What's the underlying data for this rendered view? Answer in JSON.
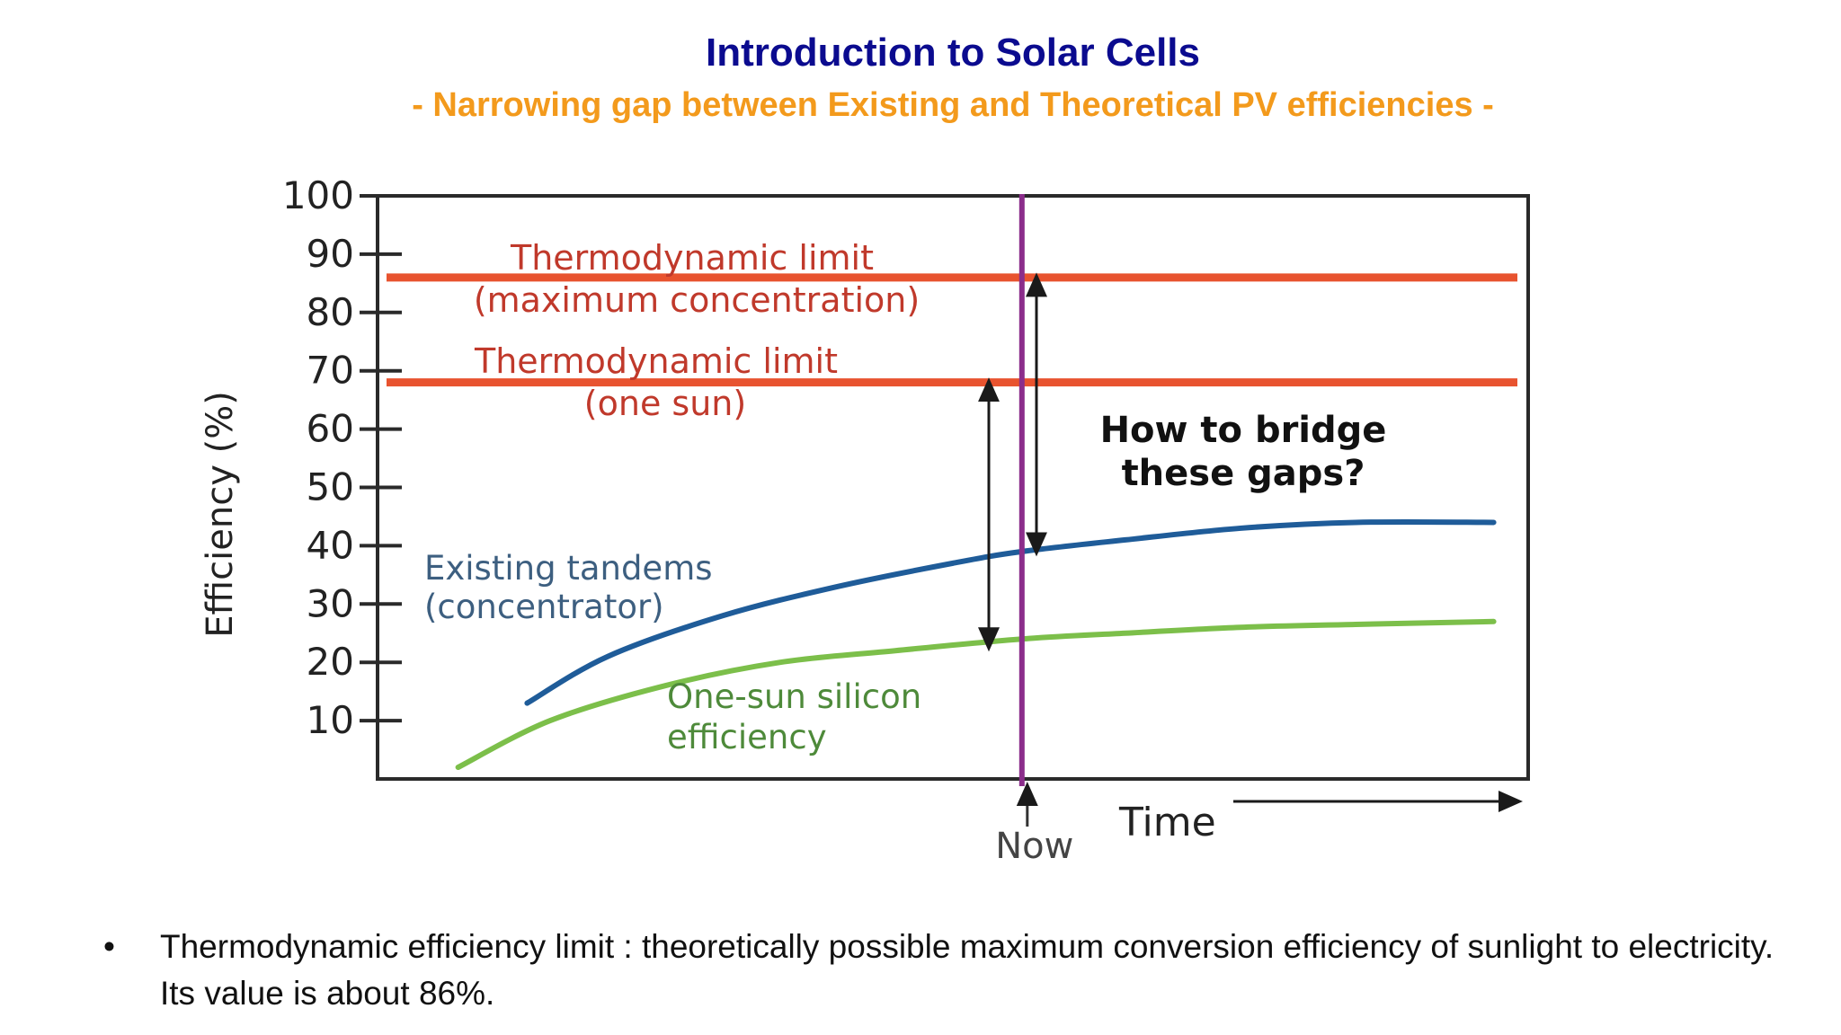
{
  "slide": {
    "title": "Introduction to Solar Cells",
    "subtitle": "- Narrowing gap between Existing and Theoretical PV efficiencies -",
    "bullet_symbol": "•",
    "bullet_text": "Thermodynamic efficiency limit : theoretically possible maximum conversion efficiency of sunlight to electricity. Its value is about 86%."
  },
  "colors": {
    "title": "#0b0b8f",
    "subtitle": "#f39a1c",
    "limit_line": "#e8532f",
    "tandem_line": "#1f5c99",
    "silicon_line": "#7cbf4a",
    "now_line": "#8b2d8b",
    "axis": "#2a2a2a"
  },
  "chart_data": {
    "type": "line",
    "ylabel": "Efficiency (%)",
    "xlabel": "Time",
    "ylim": [
      0,
      100
    ],
    "xlim": [
      0,
      100
    ],
    "yticks": [
      10,
      20,
      30,
      40,
      50,
      60,
      70,
      80,
      90,
      100
    ],
    "grid": false,
    "now_x": 56,
    "now_label": "Now",
    "hlines": [
      {
        "name": "Thermodynamic limit (maximum concentration)",
        "y": 86,
        "label_lines": [
          "Thermodynamic limit",
          "(maximum concentration)"
        ]
      },
      {
        "name": "Thermodynamic limit (one sun)",
        "y": 68,
        "label_lines": [
          "Thermodynamic limit",
          "(one sun)"
        ]
      }
    ],
    "series": [
      {
        "name": "Existing tandems (concentrator)",
        "label_lines": [
          "Existing tandems",
          "(concentrator)"
        ],
        "x": [
          13,
          20,
          30,
          40,
          50,
          56,
          65,
          75,
          85,
          97
        ],
        "y": [
          13,
          21,
          28,
          33,
          37,
          39,
          41,
          43,
          44,
          44
        ]
      },
      {
        "name": "One-sun silicon efficiency",
        "label_lines": [
          "One-sun silicon",
          "efficiency"
        ],
        "x": [
          7,
          15,
          25,
          35,
          45,
          56,
          65,
          75,
          85,
          97
        ],
        "y": [
          2,
          10,
          16,
          20,
          22,
          24,
          25,
          26,
          26.5,
          27
        ]
      }
    ],
    "annotation": [
      "How to bridge",
      "these gaps?"
    ]
  }
}
